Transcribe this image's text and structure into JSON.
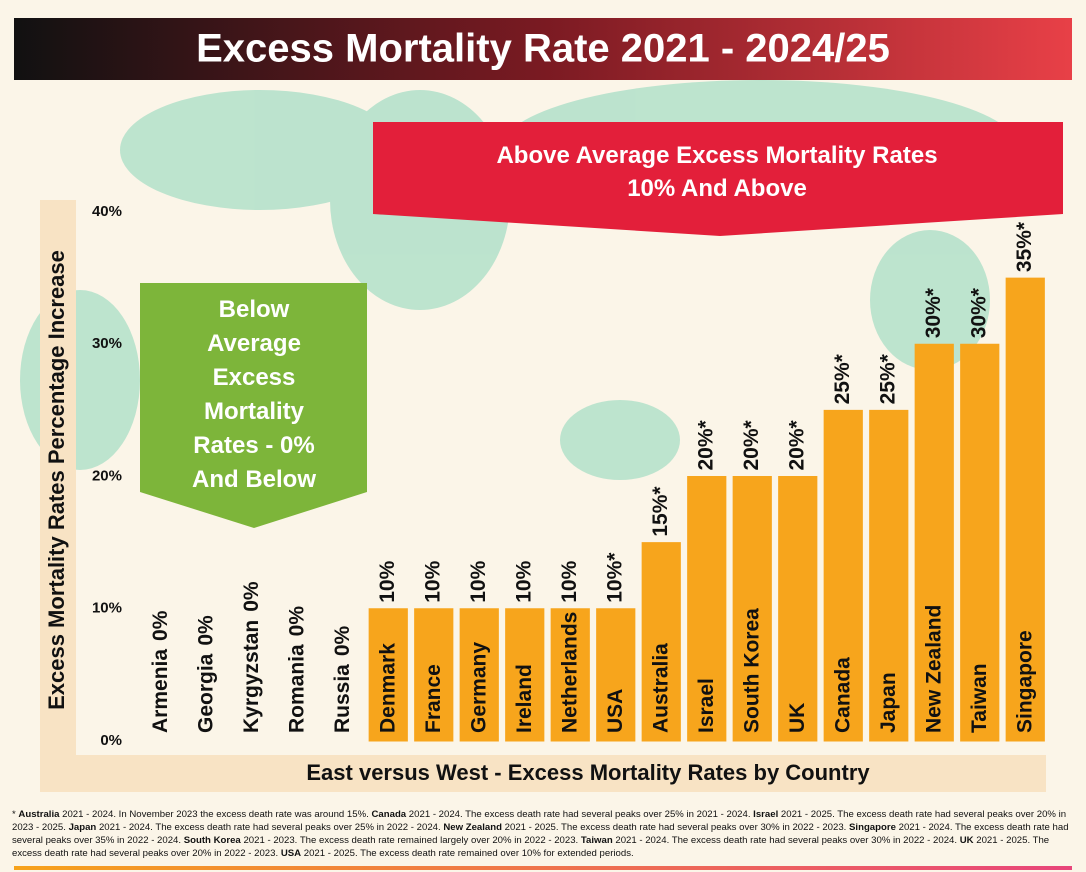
{
  "chart_data": {
    "type": "bar",
    "title": "Excess Mortality Rate 2021 - 2024/25",
    "above_banner": [
      "Above Average Excess Mortality Rates",
      "10% And Above"
    ],
    "below_banner": [
      "Below",
      "Average",
      "Excess",
      "Mortality",
      "Rates - 0%",
      "And Below"
    ],
    "y_label": "Excess Mortality Rates Percentage Increase",
    "x_label": "East versus West - Excess Mortality Rates by Country",
    "categories": [
      "Armenia",
      "Georgia",
      "Kyrgyzstan",
      "Romania",
      "Russia",
      "Denmark",
      "France",
      "Germany",
      "Ireland",
      "Netherlands",
      "USA",
      "Australia",
      "Israel",
      "South Korea",
      "UK",
      "Canada",
      "Japan",
      "New Zealand",
      "Taiwan",
      "Singapore"
    ],
    "values": [
      0,
      0,
      0,
      0,
      0,
      10,
      10,
      10,
      10,
      10,
      10,
      15,
      20,
      20,
      20,
      25,
      25,
      30,
      30,
      35
    ],
    "value_labels": [
      "0%",
      "0%",
      "0%",
      "0%",
      "0%",
      "10%",
      "10%",
      "10%",
      "10%",
      "10%",
      "10%*",
      "15%*",
      "20%*",
      "20%*",
      "20%*",
      "25%*",
      "25%*",
      "30%*",
      "30%*",
      "35%*"
    ],
    "color": "#f7a51c",
    "ylim": [
      0,
      40
    ],
    "yticks": [
      {
        "value": 0,
        "label": "0%"
      },
      {
        "value": 10,
        "label": "10%"
      },
      {
        "value": 20,
        "label": "20%"
      },
      {
        "value": 30,
        "label": "30%"
      },
      {
        "value": 40,
        "label": "40%"
      }
    ],
    "grid": false,
    "footnote_marker": "*",
    "notes": [
      {
        "country": "Australia",
        "text": " 2021 - 2024. In November 2023 the excess death rate was around 15%."
      },
      {
        "country": "Canada",
        "text": " 2021 - 2024. The excess death rate had several peaks over 25% in 2021 - 2024."
      },
      {
        "country": "Israel",
        "text": " 2021 - 2025. The excess death rate had several peaks over 20% in 2023 - 2025."
      },
      {
        "country": "Japan",
        "text": " 2021 - 2024. The excess death rate had several peaks over 25% in 2022 - 2024."
      },
      {
        "country": "New Zealand",
        "text": " 2021 - 2025. The excess death rate had several peaks over 30% in 2022 - 2023."
      },
      {
        "country": "Singapore",
        "text": " 2021 - 2024. The excess death rate had several peaks over 35% in 2022 - 2024."
      },
      {
        "country": "South Korea",
        "text": " 2021 - 2023. The excess death rate remained largely over 20% in 2022 - 2023."
      },
      {
        "country": "Taiwan",
        "text": " 2021 - 2024. The excess death rate had several peaks over 30% in 2022 - 2024."
      },
      {
        "country": "UK",
        "text": " 2021 - 2025. The excess death rate had several peaks over 20% in 2022 - 2023."
      },
      {
        "country": "USA",
        "text": " 2021 - 2025. The excess death rate remained over 10% for extended periods."
      }
    ]
  }
}
